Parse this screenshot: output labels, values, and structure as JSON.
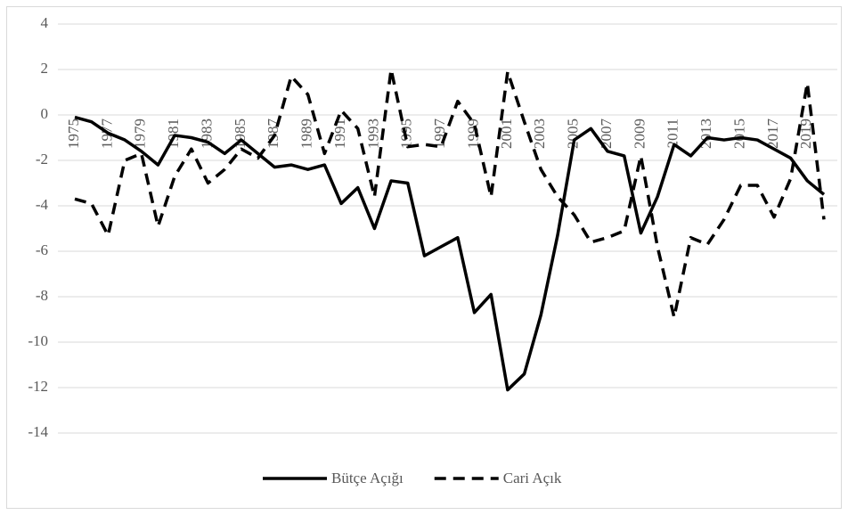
{
  "chart_data": {
    "type": "line",
    "categories": [
      "1975",
      null,
      "1977",
      null,
      "1979",
      null,
      "1981",
      null,
      "1983",
      null,
      "1985",
      null,
      "1987",
      null,
      "1989",
      null,
      "1991",
      null,
      "1993",
      null,
      "1995",
      null,
      "1997",
      null,
      "1999",
      null,
      "2001",
      null,
      "2003",
      null,
      "2005",
      null,
      "2007",
      null,
      "2009",
      null,
      "2011",
      null,
      "2013",
      null,
      "2015",
      null,
      "2017",
      null,
      "2019",
      null
    ],
    "series": [
      {
        "name": "Bütçe Açığı",
        "color": "#000000",
        "dash": false,
        "values": [
          -0.1,
          -0.3,
          -0.8,
          -1.1,
          -1.6,
          -2.2,
          -0.9,
          -1.0,
          -1.2,
          -1.7,
          -1.1,
          -1.7,
          -2.3,
          -2.2,
          -2.4,
          -2.2,
          -3.9,
          -3.2,
          -5.0,
          -2.9,
          -3.0,
          -6.2,
          -5.8,
          -5.4,
          -8.7,
          -7.9,
          -12.1,
          -11.4,
          -8.8,
          -5.3,
          -1.1,
          -0.6,
          -1.6,
          -1.8,
          -5.2,
          -3.6,
          -1.3,
          -1.8,
          -1.0,
          -1.1,
          -1.0,
          -1.1,
          -1.5,
          -1.9,
          -2.9,
          -3.5
        ]
      },
      {
        "name": "Cari Açık",
        "color": "#000000",
        "dash": true,
        "values": [
          -3.7,
          -3.9,
          -5.3,
          -2.0,
          -1.7,
          -4.9,
          -2.7,
          -1.5,
          -3.0,
          -2.4,
          -1.5,
          -1.9,
          -0.9,
          1.7,
          0.9,
          -1.7,
          0.2,
          -0.6,
          -3.6,
          2.0,
          -1.4,
          -1.3,
          -1.4,
          0.6,
          -0.4,
          -3.6,
          1.9,
          -0.3,
          -2.4,
          -3.6,
          -4.4,
          -5.6,
          -5.4,
          -5.1,
          -1.8,
          -5.8,
          -8.9,
          -5.4,
          -5.7,
          -4.6,
          -3.1,
          -3.1,
          -4.5,
          -2.8,
          1.4,
          -4.6
        ]
      }
    ],
    "ylim": [
      -14,
      4
    ],
    "yticks": [
      -14,
      -12,
      -10,
      -8,
      -6,
      -4,
      -2,
      0,
      2,
      4
    ],
    "grid": true,
    "legend": "bottom"
  }
}
